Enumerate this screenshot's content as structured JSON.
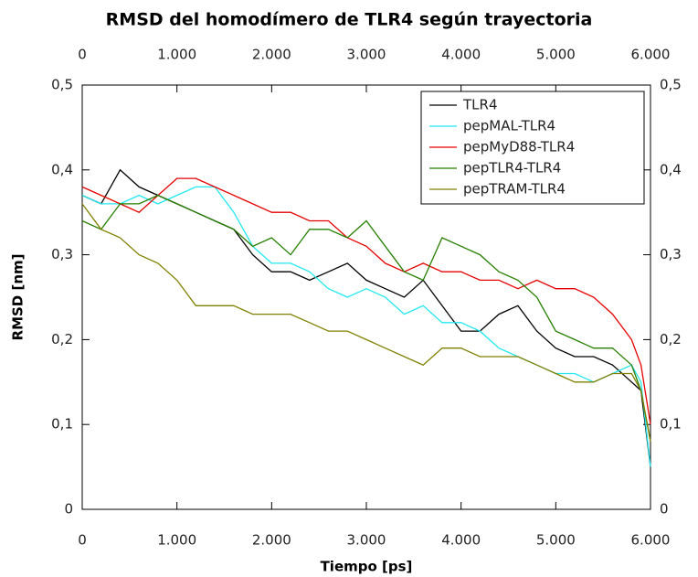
{
  "chart_data": {
    "type": "line",
    "title": "RMSD del homodímero de TLR4 según trayectoria",
    "xlabel": "Tiempo [ps]",
    "ylabel": "RMSD [nm]",
    "x": [
      0,
      200,
      400,
      600,
      800,
      1000,
      1200,
      1400,
      1600,
      1800,
      2000,
      2200,
      2400,
      2600,
      2800,
      3000,
      3200,
      3400,
      3600,
      3800,
      4000,
      4200,
      4400,
      4600,
      4800,
      5000,
      5200,
      5400,
      5600,
      5800,
      5900,
      6000
    ],
    "series": [
      {
        "name": "TLR4",
        "color": "#000000",
        "values": [
          0.37,
          0.36,
          0.4,
          0.38,
          0.37,
          0.36,
          0.35,
          0.34,
          0.33,
          0.3,
          0.28,
          0.28,
          0.27,
          0.28,
          0.29,
          0.27,
          0.26,
          0.25,
          0.27,
          0.24,
          0.21,
          0.21,
          0.23,
          0.24,
          0.21,
          0.19,
          0.18,
          0.18,
          0.17,
          0.15,
          0.14,
          0.05
        ]
      },
      {
        "name": "pepMAL-TLR4",
        "color": "#22e8f0",
        "values": [
          0.37,
          0.36,
          0.36,
          0.37,
          0.36,
          0.37,
          0.38,
          0.38,
          0.35,
          0.31,
          0.29,
          0.29,
          0.28,
          0.26,
          0.25,
          0.26,
          0.25,
          0.23,
          0.24,
          0.22,
          0.22,
          0.21,
          0.19,
          0.18,
          0.17,
          0.16,
          0.16,
          0.15,
          0.16,
          0.17,
          0.15,
          0.05
        ]
      },
      {
        "name": "pepMyD88-TLR4",
        "color": "#e60000",
        "values": [
          0.38,
          0.37,
          0.36,
          0.35,
          0.37,
          0.39,
          0.39,
          0.38,
          0.37,
          0.36,
          0.35,
          0.35,
          0.34,
          0.34,
          0.32,
          0.31,
          0.29,
          0.28,
          0.29,
          0.28,
          0.28,
          0.27,
          0.27,
          0.26,
          0.27,
          0.26,
          0.26,
          0.25,
          0.23,
          0.2,
          0.17,
          0.1
        ]
      },
      {
        "name": "pepTLR4-TLR4",
        "color": "#267f00",
        "values": [
          0.34,
          0.33,
          0.36,
          0.36,
          0.37,
          0.36,
          0.35,
          0.34,
          0.33,
          0.31,
          0.32,
          0.3,
          0.33,
          0.33,
          0.32,
          0.34,
          0.31,
          0.28,
          0.27,
          0.32,
          0.31,
          0.3,
          0.28,
          0.27,
          0.25,
          0.21,
          0.2,
          0.19,
          0.19,
          0.17,
          0.14,
          0.08
        ]
      },
      {
        "name": "pepTRAM-TLR4",
        "color": "#808000",
        "values": [
          0.36,
          0.33,
          0.32,
          0.3,
          0.29,
          0.27,
          0.24,
          0.24,
          0.24,
          0.23,
          0.23,
          0.23,
          0.22,
          0.21,
          0.21,
          0.2,
          0.19,
          0.18,
          0.17,
          0.19,
          0.19,
          0.18,
          0.18,
          0.18,
          0.17,
          0.16,
          0.15,
          0.15,
          0.16,
          0.16,
          0.14,
          0.08
        ]
      }
    ],
    "xlim": [
      0,
      6000
    ],
    "xticks": [
      0,
      {
        "value": 1000,
        "label": "1.000"
      },
      {
        "value": 2000,
        "label": "2.000"
      },
      {
        "value": 3000,
        "label": "3.000"
      },
      {
        "value": 4000,
        "label": "4.000"
      },
      {
        "value": 5000,
        "label": "5.000"
      },
      {
        "value": 6000,
        "label": "6.000"
      }
    ],
    "ylim": [
      0,
      0.5
    ],
    "yticks": [
      0,
      {
        "value": 0.1,
        "label": "0,1"
      },
      {
        "value": 0.2,
        "label": "0,2"
      },
      {
        "value": 0.3,
        "label": "0,3"
      },
      {
        "value": 0.4,
        "label": "0,4"
      },
      {
        "value": 0.5,
        "label": "0,5"
      }
    ],
    "legend": "upper right",
    "grid": false
  }
}
